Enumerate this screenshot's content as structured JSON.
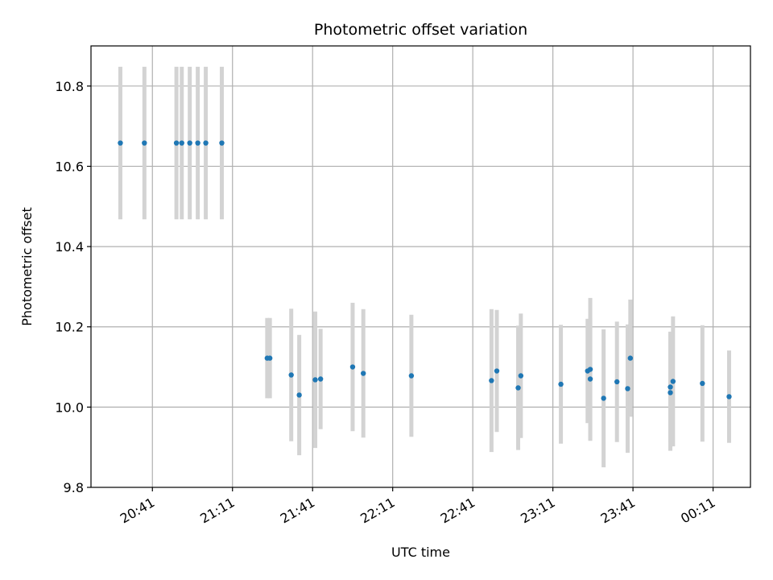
{
  "chart_data": {
    "type": "scatter",
    "title": "Photometric offset variation",
    "xlabel": "UTC time",
    "ylabel": "Photometric offset",
    "x_is_time": true,
    "x_start": "20:18",
    "x_end": "00:25",
    "xlim": [
      "20:18",
      "00:25"
    ],
    "ylim": [
      9.8,
      10.9
    ],
    "xticks": [
      "20:41",
      "21:11",
      "21:41",
      "22:11",
      "22:41",
      "23:11",
      "23:41",
      "00:11"
    ],
    "yticks": [
      9.8,
      10.0,
      10.2,
      10.4,
      10.6,
      10.8
    ],
    "grid": true,
    "point_color": "#1f77b4",
    "errorbar_color": "#d3d3d3",
    "series": [
      {
        "points": [
          {
            "x": "20:29",
            "y": 10.658,
            "err": 0.19
          },
          {
            "x": "20:38",
            "y": 10.658,
            "err": 0.19
          },
          {
            "x": "20:50",
            "y": 10.658,
            "err": 0.19
          },
          {
            "x": "20:52",
            "y": 10.658,
            "err": 0.19
          },
          {
            "x": "20:55",
            "y": 10.658,
            "err": 0.19
          },
          {
            "x": "20:58",
            "y": 10.658,
            "err": 0.19
          },
          {
            "x": "21:01",
            "y": 10.658,
            "err": 0.19
          },
          {
            "x": "21:07",
            "y": 10.658,
            "err": 0.19
          },
          {
            "x": "21:24",
            "y": 10.122,
            "err": 0.1
          },
          {
            "x": "21:25",
            "y": 10.122,
            "err": 0.1
          },
          {
            "x": "21:33",
            "y": 10.08,
            "err": 0.165
          },
          {
            "x": "21:36",
            "y": 10.03,
            "err": 0.15
          },
          {
            "x": "21:42",
            "y": 10.068,
            "err": 0.17
          },
          {
            "x": "21:44",
            "y": 10.07,
            "err": 0.125
          },
          {
            "x": "21:56",
            "y": 10.1,
            "err": 0.16
          },
          {
            "x": "22:00",
            "y": 10.084,
            "err": 0.16
          },
          {
            "x": "22:18",
            "y": 10.078,
            "err": 0.152
          },
          {
            "x": "22:48",
            "y": 10.066,
            "err": 0.178
          },
          {
            "x": "22:50",
            "y": 10.09,
            "err": 0.152
          },
          {
            "x": "22:58",
            "y": 10.048,
            "err": 0.155
          },
          {
            "x": "22:59",
            "y": 10.078,
            "err": 0.155
          },
          {
            "x": "23:14",
            "y": 10.057,
            "err": 0.148
          },
          {
            "x": "23:24",
            "y": 10.09,
            "err": 0.13
          },
          {
            "x": "23:25",
            "y": 10.094,
            "err": 0.178
          },
          {
            "x": "23:25",
            "y": 10.07,
            "err": 0.15
          },
          {
            "x": "23:30",
            "y": 10.022,
            "err": 0.172
          },
          {
            "x": "23:35",
            "y": 10.063,
            "err": 0.15
          },
          {
            "x": "23:39",
            "y": 10.046,
            "err": 0.16
          },
          {
            "x": "23:40",
            "y": 10.122,
            "err": 0.146
          },
          {
            "x": "23:55",
            "y": 10.05,
            "err": 0.138
          },
          {
            "x": "23:55",
            "y": 10.036,
            "err": 0.145
          },
          {
            "x": "23:56",
            "y": 10.064,
            "err": 0.162
          },
          {
            "x": "00:07",
            "y": 10.059,
            "err": 0.145
          },
          {
            "x": "00:17",
            "y": 10.026,
            "err": 0.115
          }
        ]
      }
    ]
  }
}
